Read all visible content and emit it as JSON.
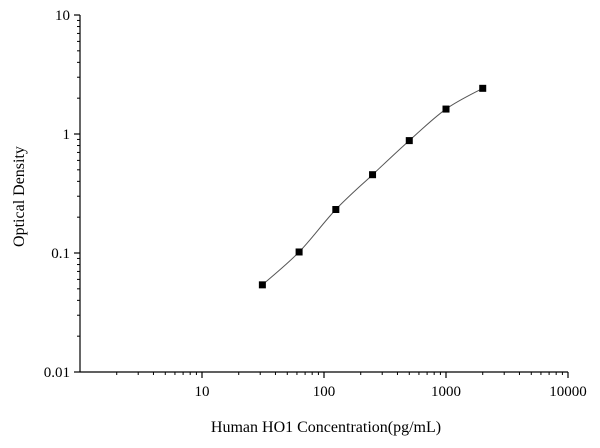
{
  "chart_data": {
    "type": "scatter",
    "title": "",
    "xlabel": "Human HO1 Concentration(pg/mL)",
    "ylabel": "Optical Density",
    "xscale": "log",
    "yscale": "log",
    "xlim": [
      1,
      10000
    ],
    "ylim": [
      0.01,
      10
    ],
    "x_ticks": [
      {
        "value": 10,
        "label": "10"
      },
      {
        "value": 100,
        "label": "100"
      },
      {
        "value": 1000,
        "label": "1000"
      },
      {
        "value": 10000,
        "label": "10000"
      }
    ],
    "y_ticks": [
      {
        "value": 0.01,
        "label": "0.01"
      },
      {
        "value": 0.1,
        "label": "0.1"
      },
      {
        "value": 1,
        "label": "1"
      },
      {
        "value": 10,
        "label": "10"
      }
    ],
    "grid": false,
    "legend": "none",
    "fit_line": true,
    "series": [
      {
        "points": [
          {
            "x": 31.25,
            "y": 0.054
          },
          {
            "x": 62.5,
            "y": 0.102
          },
          {
            "x": 125,
            "y": 0.232
          },
          {
            "x": 250,
            "y": 0.455
          },
          {
            "x": 500,
            "y": 0.88
          },
          {
            "x": 1000,
            "y": 1.62
          },
          {
            "x": 2000,
            "y": 2.42
          }
        ]
      }
    ]
  }
}
